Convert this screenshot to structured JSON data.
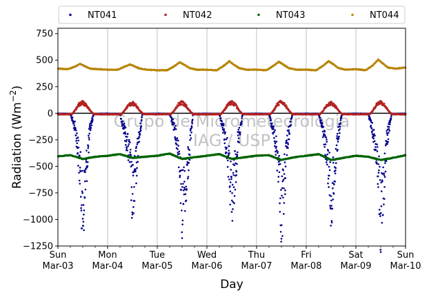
{
  "chart_data": {
    "type": "scatter",
    "title": "",
    "xlabel": "Day",
    "ylabel": "Radiation (Wm",
    "ylabel_sup": "−2",
    "ylabel_close": ")",
    "ylim": [
      -1250,
      800
    ],
    "yticks": [
      -1250,
      -1000,
      -750,
      -500,
      -250,
      0,
      250,
      500,
      750
    ],
    "ytick_labels": [
      "−1250",
      "−1000",
      "−750",
      "−500",
      "−250",
      "0",
      "250",
      "500",
      "750"
    ],
    "xlim": [
      0,
      7
    ],
    "x_unit": "days from 2019-03-03",
    "xticks": [
      {
        "pos": 0,
        "day": "Sun",
        "date": "Mar-03"
      },
      {
        "pos": 1,
        "day": "Mon",
        "date": "Mar-04"
      },
      {
        "pos": 2,
        "day": "Tue",
        "date": "Mar-05"
      },
      {
        "pos": 3,
        "day": "Wed",
        "date": "Mar-06"
      },
      {
        "pos": 4,
        "day": "Thu",
        "date": "Mar-07"
      },
      {
        "pos": 5,
        "day": "Fri",
        "date": "Mar-08"
      },
      {
        "pos": 6,
        "day": "Sat",
        "date": "Mar-09"
      },
      {
        "pos": 7,
        "day": "Sun",
        "date": "Mar-10"
      }
    ],
    "grid": "vertical",
    "legend_position": "top",
    "watermark": [
      "Grupo de Micrometeorologia",
      "IAG / USP"
    ],
    "series": [
      {
        "name": "NT041",
        "color": "#00008b",
        "x": [
          0.0,
          0.25,
          0.35,
          0.4,
          0.45,
          0.5,
          0.55,
          0.6,
          0.65,
          0.72,
          1.0,
          1.25,
          1.35,
          1.45,
          1.5,
          1.55,
          1.6,
          1.7,
          2.0,
          2.25,
          2.35,
          2.45,
          2.5,
          2.6,
          2.72,
          3.0,
          3.25,
          3.35,
          3.45,
          3.5,
          3.55,
          3.62,
          3.72,
          4.0,
          4.25,
          4.35,
          4.45,
          4.5,
          4.55,
          4.62,
          4.72,
          5.0,
          5.25,
          5.35,
          5.45,
          5.5,
          5.55,
          5.62,
          5.72,
          6.0,
          6.25,
          6.35,
          6.45,
          6.5,
          6.55,
          6.62,
          6.72,
          7.0
        ],
        "y": [
          -5,
          -8,
          -150,
          -350,
          -620,
          -1050,
          -700,
          -400,
          -150,
          -8,
          -5,
          -8,
          -200,
          -450,
          -900,
          -700,
          -400,
          -8,
          -5,
          -8,
          -150,
          -450,
          -950,
          -600,
          -8,
          -5,
          -8,
          -200,
          -550,
          -980,
          -700,
          -300,
          -8,
          -5,
          -8,
          -200,
          -550,
          -1020,
          -750,
          -300,
          -8,
          -5,
          -8,
          -200,
          -550,
          -920,
          -700,
          -300,
          -8,
          -5,
          -8,
          -200,
          -550,
          -1050,
          -800,
          -300,
          -8,
          -5
        ]
      },
      {
        "name": "NT042",
        "color": "#b22222",
        "x": [
          0.0,
          0.28,
          0.35,
          0.42,
          0.5,
          0.58,
          0.65,
          0.72,
          1.0,
          1.28,
          1.35,
          1.42,
          1.5,
          1.58,
          1.65,
          1.72,
          2.0,
          2.28,
          2.35,
          2.42,
          2.5,
          2.58,
          2.65,
          2.72,
          3.0,
          3.28,
          3.35,
          3.42,
          3.5,
          3.58,
          3.65,
          3.72,
          4.0,
          4.28,
          4.35,
          4.42,
          4.5,
          4.58,
          4.65,
          4.72,
          5.0,
          5.28,
          5.35,
          5.42,
          5.5,
          5.58,
          5.65,
          5.72,
          6.0,
          6.28,
          6.35,
          6.42,
          6.5,
          6.58,
          6.65,
          6.72,
          7.0
        ],
        "y": [
          -10,
          -8,
          30,
          80,
          100,
          70,
          25,
          -8,
          -10,
          -8,
          30,
          75,
          95,
          70,
          25,
          -8,
          -10,
          -8,
          30,
          80,
          100,
          70,
          25,
          -8,
          -10,
          -8,
          30,
          80,
          100,
          75,
          25,
          -8,
          -10,
          -8,
          30,
          85,
          105,
          75,
          25,
          -8,
          -10,
          -8,
          30,
          80,
          95,
          70,
          25,
          -8,
          -10,
          -8,
          30,
          85,
          105,
          75,
          25,
          -8,
          -10
        ]
      },
      {
        "name": "NT043",
        "color": "#006400",
        "x": [
          0.0,
          0.25,
          0.5,
          0.75,
          1.0,
          1.25,
          1.5,
          1.75,
          2.0,
          2.25,
          2.5,
          2.75,
          3.0,
          3.25,
          3.5,
          3.75,
          4.0,
          4.25,
          4.5,
          4.75,
          5.0,
          5.25,
          5.5,
          5.75,
          6.0,
          6.25,
          6.5,
          6.75,
          7.0
        ],
        "y": [
          -405,
          -395,
          -430,
          -410,
          -400,
          -385,
          -420,
          -410,
          -400,
          -380,
          -430,
          -415,
          -400,
          -385,
          -430,
          -415,
          -400,
          -395,
          -440,
          -415,
          -400,
          -385,
          -440,
          -420,
          -400,
          -410,
          -440,
          -420,
          -395
        ]
      },
      {
        "name": "NT044",
        "color": "#b8860b",
        "x": [
          0.0,
          0.2,
          0.35,
          0.45,
          0.55,
          0.65,
          0.8,
          1.0,
          1.2,
          1.35,
          1.45,
          1.55,
          1.65,
          1.8,
          2.0,
          2.2,
          2.35,
          2.45,
          2.55,
          2.65,
          2.8,
          3.0,
          3.2,
          3.35,
          3.45,
          3.55,
          3.65,
          3.8,
          4.0,
          4.2,
          4.35,
          4.45,
          4.55,
          4.65,
          4.8,
          5.0,
          5.2,
          5.35,
          5.45,
          5.55,
          5.65,
          5.8,
          6.0,
          6.2,
          6.35,
          6.45,
          6.55,
          6.65,
          6.8,
          7.0
        ],
        "y": [
          420,
          415,
          440,
          465,
          440,
          420,
          415,
          410,
          410,
          440,
          460,
          440,
          420,
          410,
          405,
          405,
          445,
          480,
          455,
          425,
          410,
          410,
          405,
          450,
          490,
          455,
          425,
          410,
          410,
          405,
          450,
          485,
          455,
          425,
          410,
          410,
          405,
          450,
          490,
          460,
          425,
          410,
          415,
          405,
          455,
          505,
          465,
          430,
          420,
          430
        ]
      }
    ]
  }
}
